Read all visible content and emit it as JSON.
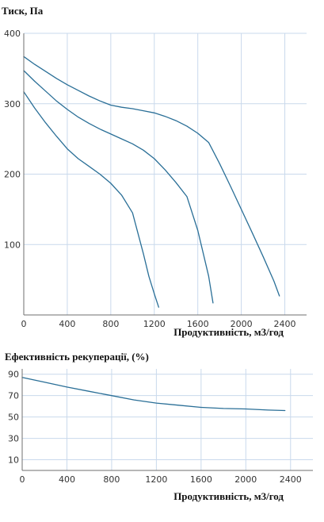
{
  "chart_data": [
    {
      "type": "line",
      "ylabel": "Тиск, Па",
      "xlabel": "Продуктивність, м3/год",
      "xlim": [
        0,
        2600
      ],
      "ylim": [
        0,
        400
      ],
      "x_ticks": [
        0,
        400,
        800,
        1200,
        1600,
        2000,
        2400
      ],
      "y_ticks": [
        100,
        200,
        300,
        400
      ],
      "grid": true,
      "series": [
        {
          "x": [
            0,
            100,
            200,
            300,
            400,
            500,
            600,
            700,
            800,
            900,
            1000,
            1100,
            1200,
            1300,
            1400,
            1500,
            1600,
            1700,
            1800,
            1900,
            2000,
            2100,
            2200,
            2300,
            2350
          ],
          "y": [
            367,
            356,
            346,
            336,
            327,
            319,
            311,
            304,
            298,
            295,
            293,
            290,
            287,
            282,
            276,
            268,
            258,
            245,
            215,
            183,
            150,
            117,
            83,
            48,
            27
          ]
        },
        {
          "x": [
            0,
            100,
            200,
            300,
            400,
            500,
            600,
            700,
            800,
            900,
            1000,
            1100,
            1200,
            1300,
            1400,
            1500,
            1600,
            1700,
            1740
          ],
          "y": [
            347,
            332,
            318,
            304,
            292,
            281,
            272,
            264,
            257,
            250,
            243,
            234,
            222,
            206,
            188,
            168,
            120,
            55,
            17
          ]
        },
        {
          "x": [
            0,
            100,
            200,
            300,
            400,
            500,
            600,
            700,
            800,
            900,
            1000,
            1100,
            1150,
            1200,
            1240
          ],
          "y": [
            317,
            294,
            273,
            254,
            236,
            222,
            211,
            200,
            187,
            170,
            145,
            87,
            55,
            30,
            11
          ]
        }
      ]
    },
    {
      "type": "line",
      "title": "Ефективність рекуперації, (%)",
      "xlabel": "Продуктивність, м3/год",
      "xlim": [
        0,
        2600
      ],
      "ylim": [
        0,
        95
      ],
      "x_ticks": [
        0,
        400,
        800,
        1200,
        1600,
        2000,
        2400
      ],
      "y_ticks": [
        10,
        30,
        50,
        70,
        90
      ],
      "grid": true,
      "series": [
        {
          "x": [
            0,
            200,
            400,
            600,
            800,
            1000,
            1200,
            1400,
            1600,
            1800,
            2000,
            2200,
            2350
          ],
          "y": [
            87,
            82.5,
            78,
            74,
            70,
            66,
            63,
            61,
            59,
            58,
            57.5,
            56.5,
            56
          ]
        }
      ]
    }
  ]
}
